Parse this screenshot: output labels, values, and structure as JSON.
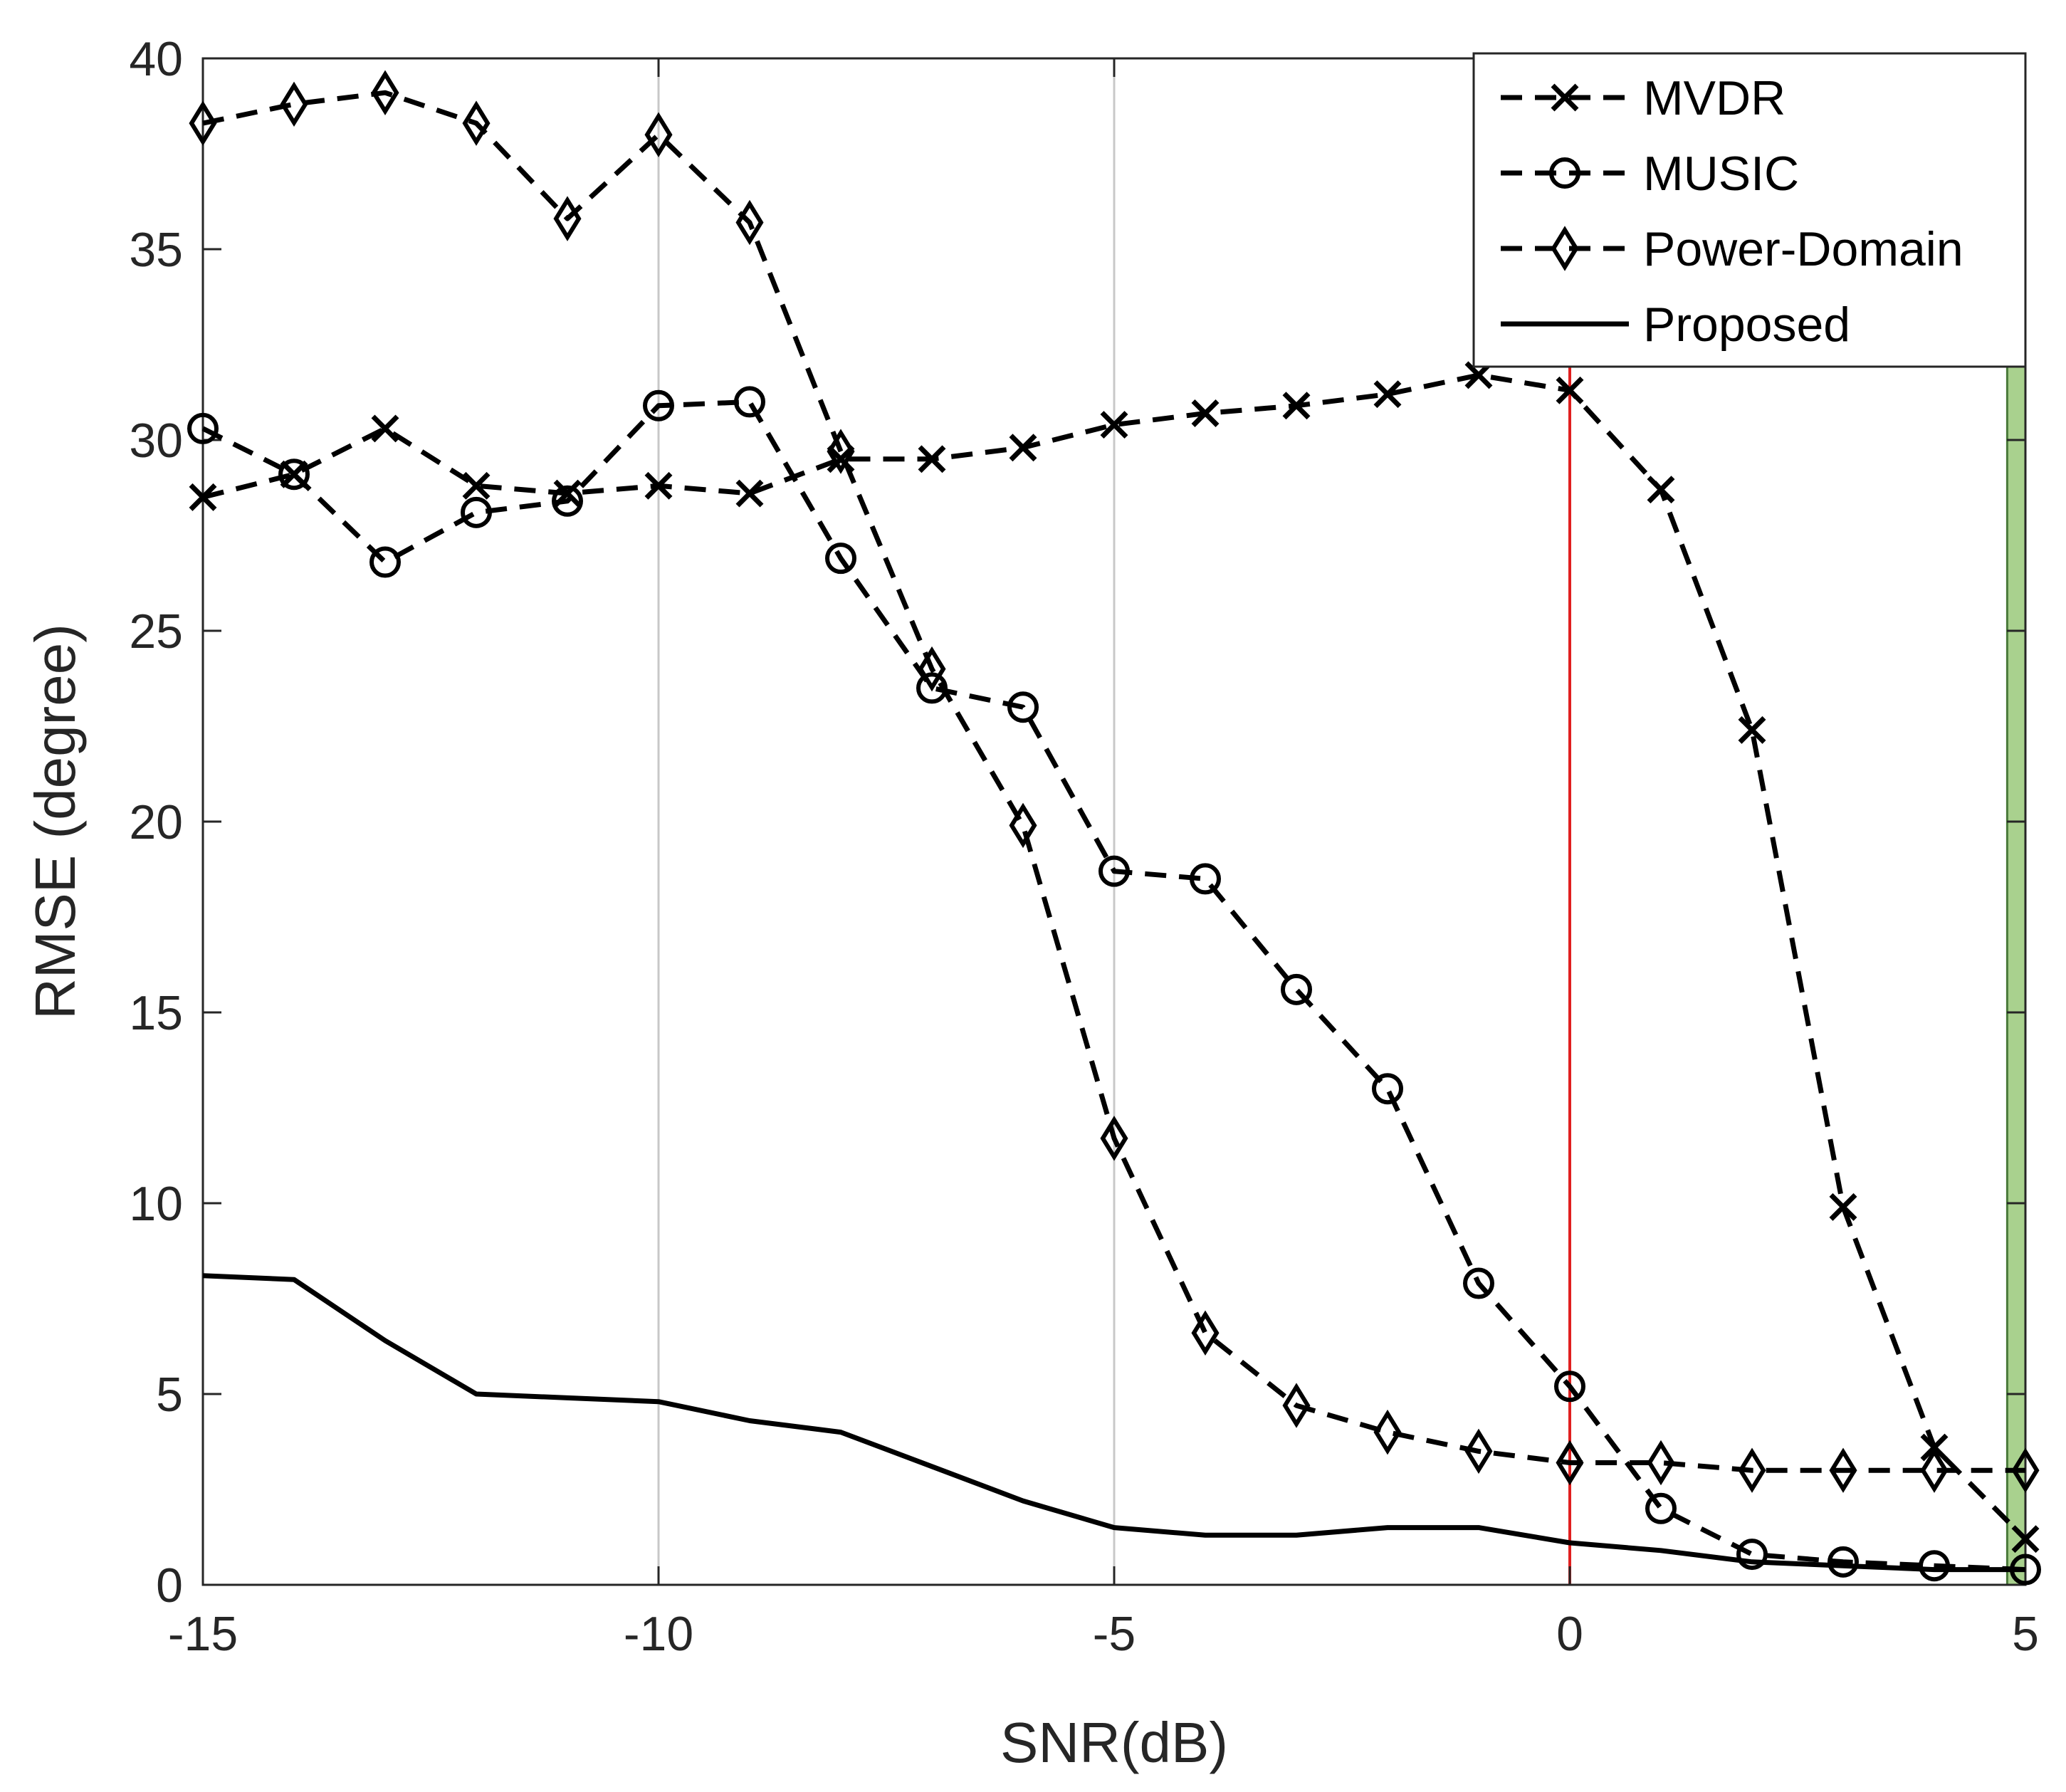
{
  "chart_data": {
    "type": "line",
    "title": "",
    "xlabel": "SNR(dB)",
    "ylabel": "RMSE (degree)",
    "xlim": [
      -15,
      5
    ],
    "ylim": [
      0,
      40
    ],
    "xticks": [
      -15,
      -10,
      -5,
      0,
      5
    ],
    "yticks": [
      0,
      5,
      10,
      15,
      20,
      25,
      30,
      35,
      40
    ],
    "x": [
      -15,
      -14,
      -13,
      -12,
      -11,
      -10,
      -9,
      -8,
      -7,
      -6,
      -5,
      -4,
      -3,
      -2,
      -1,
      0,
      1,
      2,
      3,
      4,
      5
    ],
    "vertical_gridlines_at": [
      -10,
      -5
    ],
    "highlight_line": {
      "x": 0,
      "color": "#e02020"
    },
    "highlight_band": {
      "x_from": 4.8,
      "x_to": 5,
      "color": "#a9d18e"
    },
    "legend_position": "top-right",
    "series": [
      {
        "name": "MVDR",
        "style": "dashed",
        "marker": "x",
        "color": "#000000",
        "values": [
          28.5,
          29.1,
          30.3,
          28.8,
          28.6,
          28.8,
          28.6,
          29.5,
          29.5,
          29.8,
          30.4,
          30.7,
          30.9,
          31.2,
          31.7,
          31.3,
          28.7,
          22.4,
          9.9,
          3.6,
          1.2
        ]
      },
      {
        "name": "MUSIC",
        "style": "dashed",
        "marker": "o",
        "color": "#000000",
        "values": [
          30.3,
          29.1,
          26.8,
          28.1,
          28.4,
          30.9,
          31.0,
          26.9,
          23.5,
          23.0,
          18.7,
          18.5,
          15.6,
          13.0,
          7.9,
          5.2,
          2.0,
          0.8,
          0.6,
          0.5,
          0.4
        ]
      },
      {
        "name": "Power-Domain",
        "style": "dashed",
        "marker": "diamond",
        "color": "#000000",
        "values": [
          38.3,
          38.8,
          39.1,
          38.3,
          35.8,
          38.0,
          35.7,
          29.7,
          24.0,
          19.9,
          11.7,
          6.6,
          4.7,
          4.0,
          3.5,
          3.2,
          3.2,
          3.0,
          3.0,
          3.0,
          3.0
        ]
      },
      {
        "name": "Proposed",
        "style": "solid",
        "marker": "none",
        "color": "#000000",
        "values": [
          8.1,
          8.0,
          6.4,
          5.0,
          4.9,
          4.8,
          4.3,
          4.0,
          3.1,
          2.2,
          1.5,
          1.3,
          1.3,
          1.5,
          1.5,
          1.1,
          0.9,
          0.6,
          0.5,
          0.4,
          0.4
        ]
      }
    ]
  }
}
